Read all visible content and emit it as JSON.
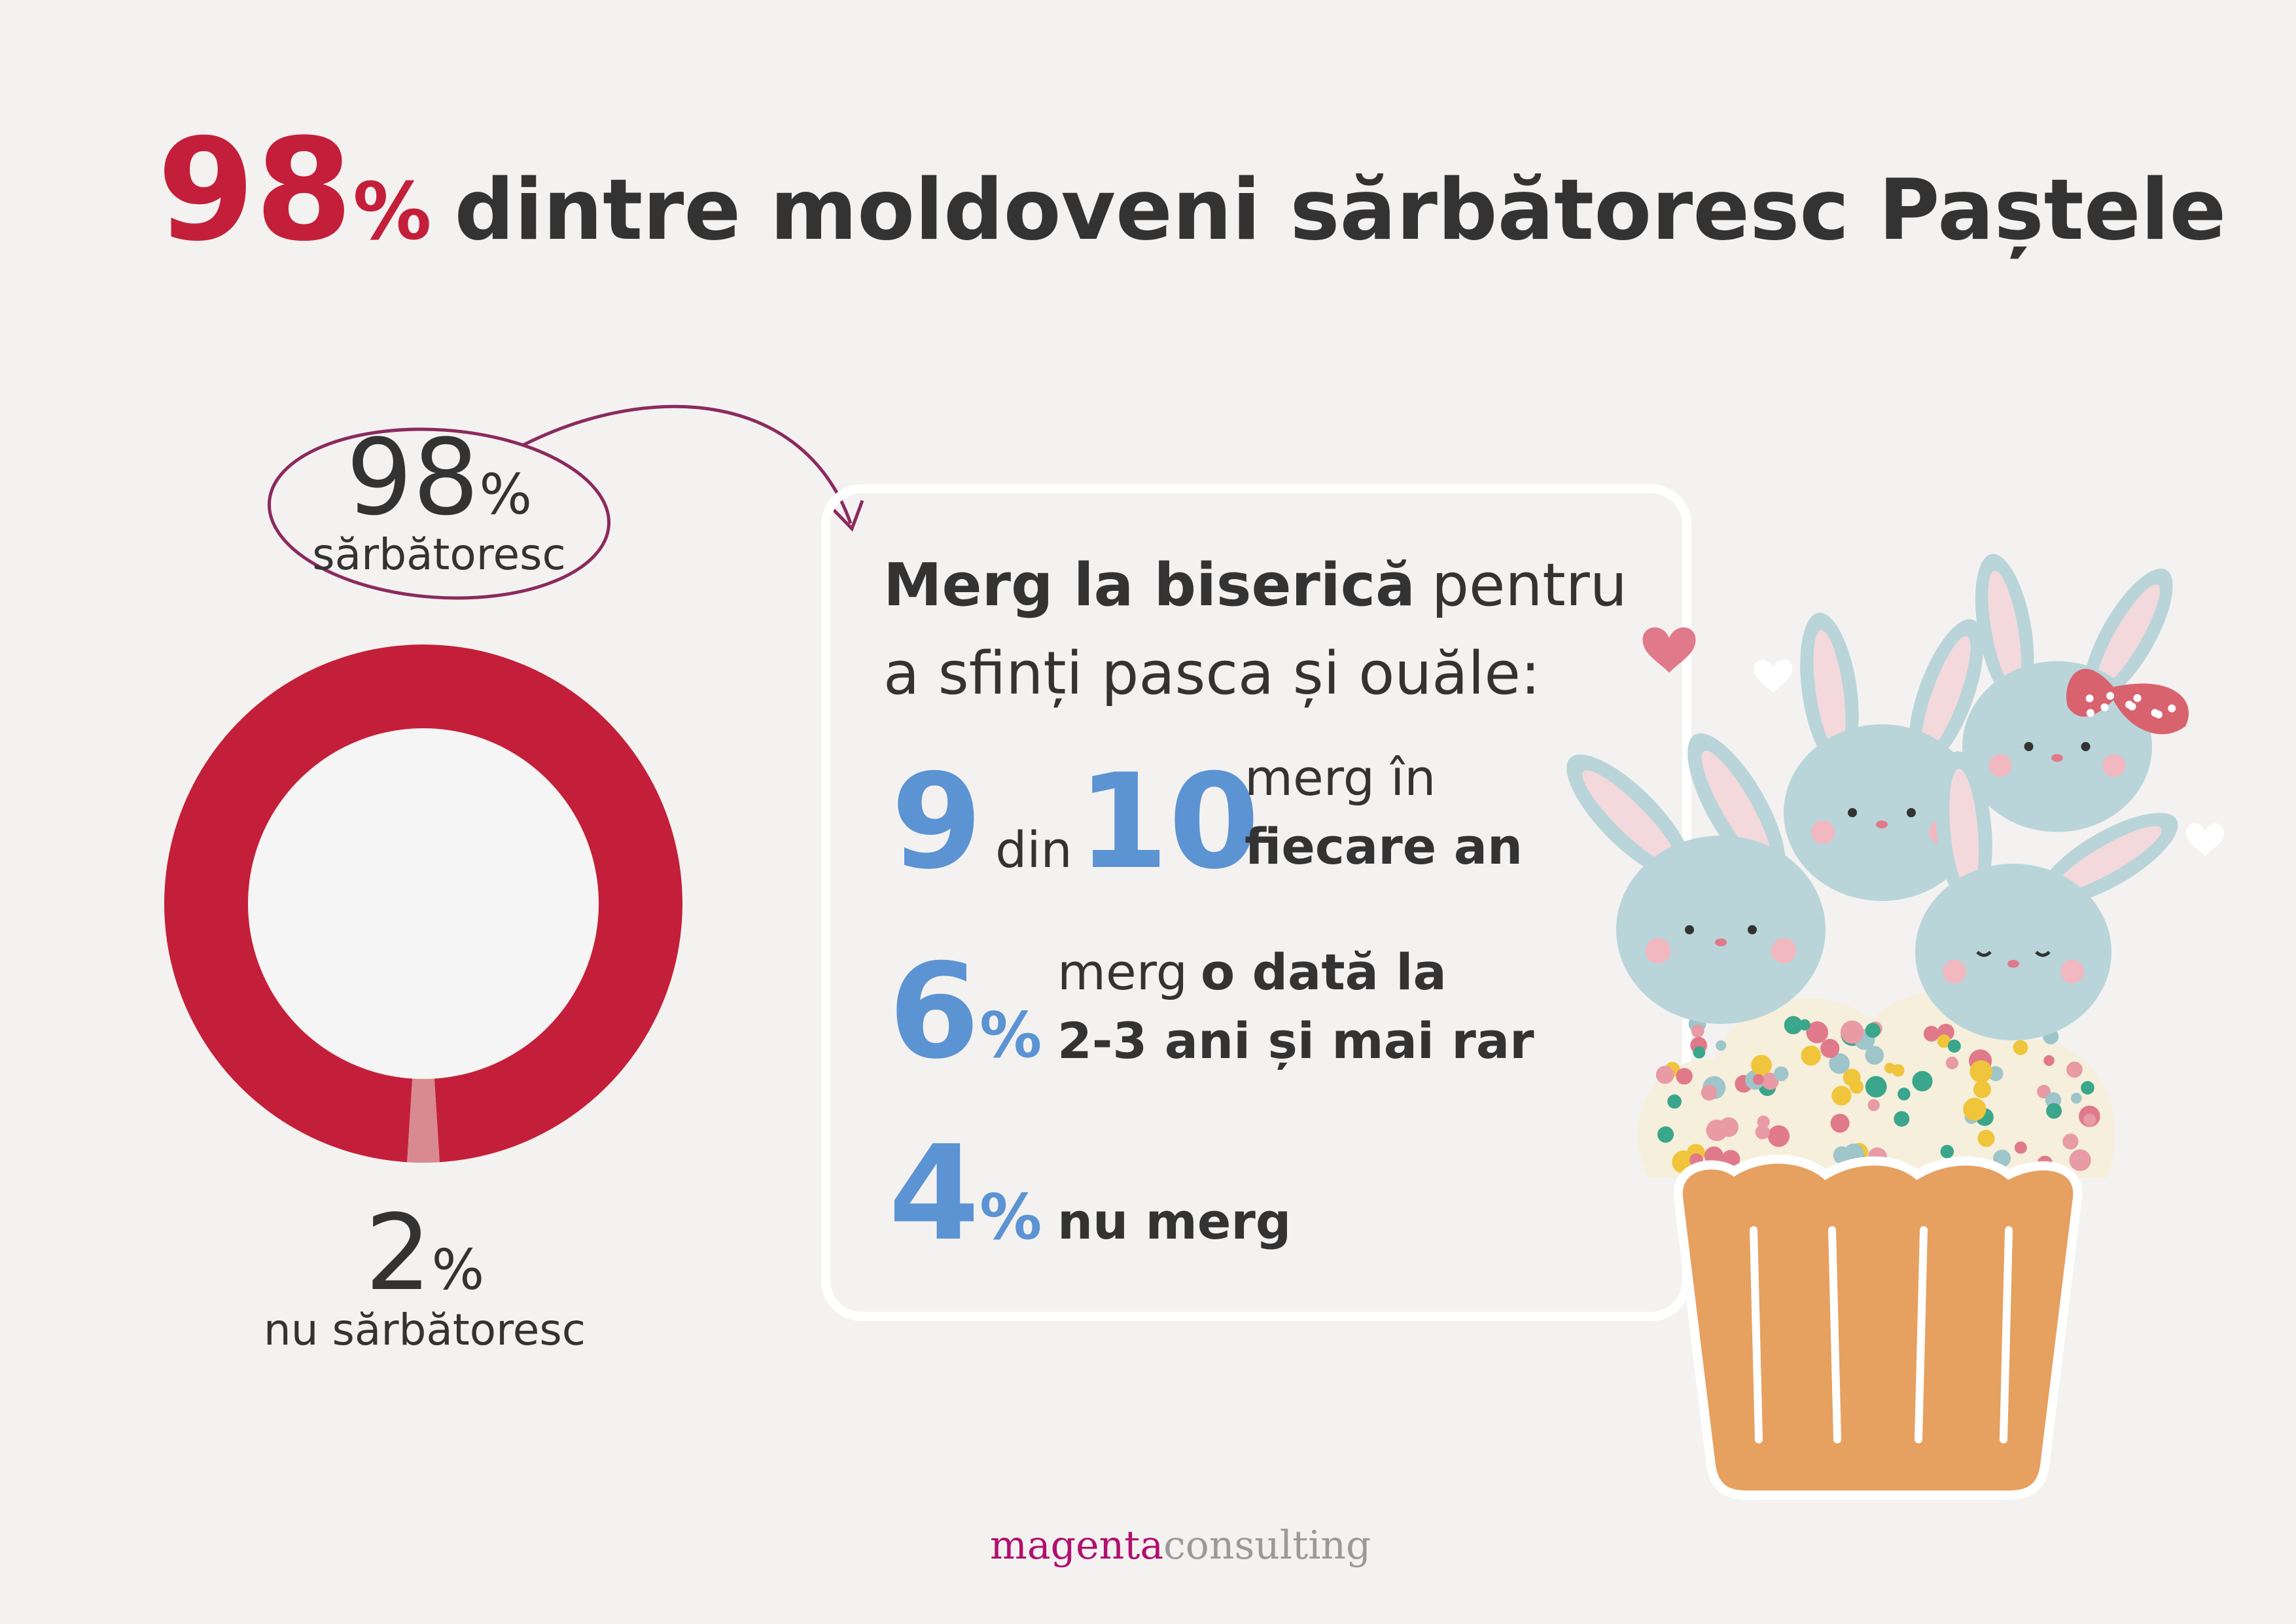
{
  "header": {
    "value": 98,
    "unit": "%",
    "text": "dintre moldoveni sărbătoresc Paștele"
  },
  "chart_data": {
    "type": "donut",
    "categories": [
      "sărbătoresc",
      "nu sărbătoresc"
    ],
    "values": [
      98,
      2
    ],
    "unit": "%",
    "colors": [
      "#c41f3a",
      "#d98a90"
    ]
  },
  "panel": {
    "heading_bold": "Merg la biserică",
    "heading_1": "pentru",
    "heading_2": "a sfinți pasca și ouăle:",
    "stats": [
      {
        "value": 9,
        "connector": "din",
        "total": 10,
        "text": "merg în",
        "bold": "fiecare an"
      },
      {
        "value": 6,
        "unit": "%",
        "text": "merg",
        "bold_1": "o dată la",
        "bold_2": "2-3 ani și mai rar"
      },
      {
        "value": 4,
        "unit": "%",
        "bold": "nu merg"
      }
    ]
  },
  "footer": {
    "brand_1": "magenta",
    "brand_2": "consulting"
  }
}
